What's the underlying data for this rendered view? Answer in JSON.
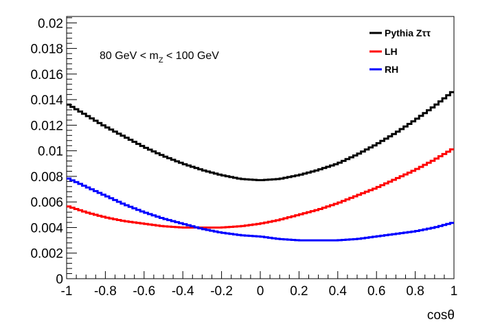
{
  "chart_data": {
    "type": "line",
    "xlabel": "cosθ",
    "ylabel": "",
    "xlim": [
      -1,
      1
    ],
    "ylim": [
      0,
      0.0205
    ],
    "x_ticks": [
      "-1",
      "-0.8",
      "-0.6",
      "-0.4",
      "-0.2",
      "0",
      "0.2",
      "0.4",
      "0.6",
      "0.8",
      "1"
    ],
    "y_ticks": [
      "0",
      "0.002",
      "0.004",
      "0.006",
      "0.008",
      "0.01",
      "0.012",
      "0.014",
      "0.016",
      "0.018",
      "0.02"
    ],
    "annotation": {
      "prefix": "80 GeV < m",
      "sub": "Z",
      "suffix": " < 100 GeV"
    },
    "legend_position": "top-right",
    "grid": false,
    "series": [
      {
        "name": "Pythia Zττ",
        "color": "#000000",
        "x": [
          -1.0,
          -0.9,
          -0.8,
          -0.7,
          -0.6,
          -0.5,
          -0.4,
          -0.3,
          -0.2,
          -0.1,
          0.0,
          0.1,
          0.2,
          0.3,
          0.4,
          0.5,
          0.6,
          0.7,
          0.8,
          0.9,
          1.0
        ],
        "y": [
          0.0137,
          0.0128,
          0.0119,
          0.0111,
          0.0103,
          0.0096,
          0.009,
          0.0085,
          0.0081,
          0.0078,
          0.0077,
          0.0078,
          0.0081,
          0.0085,
          0.009,
          0.0097,
          0.0105,
          0.0114,
          0.0124,
          0.0135,
          0.0147
        ]
      },
      {
        "name": "LH",
        "color": "#ff0000",
        "x": [
          -1.0,
          -0.9,
          -0.8,
          -0.7,
          -0.6,
          -0.5,
          -0.4,
          -0.3,
          -0.2,
          -0.1,
          0.0,
          0.1,
          0.2,
          0.3,
          0.4,
          0.5,
          0.6,
          0.7,
          0.8,
          0.9,
          1.0
        ],
        "y": [
          0.0057,
          0.0052,
          0.0048,
          0.0045,
          0.0043,
          0.0041,
          0.004,
          0.004,
          0.004,
          0.0041,
          0.0043,
          0.0046,
          0.005,
          0.0054,
          0.0059,
          0.0065,
          0.0071,
          0.0078,
          0.0085,
          0.0093,
          0.0102
        ]
      },
      {
        "name": "RH",
        "color": "#0000ff",
        "x": [
          -1.0,
          -0.9,
          -0.8,
          -0.7,
          -0.6,
          -0.5,
          -0.4,
          -0.3,
          -0.2,
          -0.1,
          0.0,
          0.1,
          0.2,
          0.3,
          0.4,
          0.5,
          0.6,
          0.7,
          0.8,
          0.9,
          1.0
        ],
        "y": [
          0.0079,
          0.0072,
          0.0065,
          0.0058,
          0.0052,
          0.0047,
          0.0043,
          0.0039,
          0.0036,
          0.0034,
          0.0033,
          0.0031,
          0.003,
          0.003,
          0.003,
          0.0031,
          0.0033,
          0.0035,
          0.0037,
          0.004,
          0.0044
        ]
      }
    ]
  }
}
